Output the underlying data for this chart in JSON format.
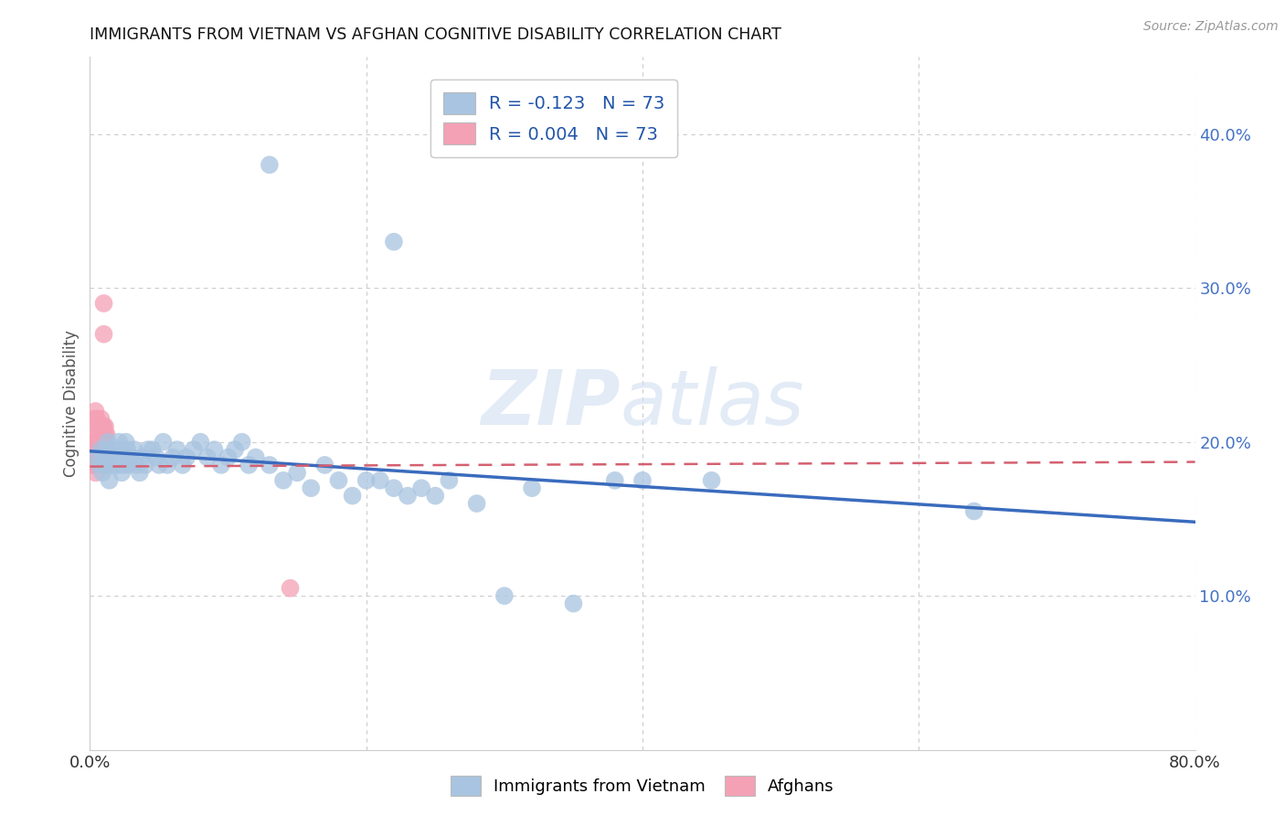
{
  "title": "IMMIGRANTS FROM VIETNAM VS AFGHAN COGNITIVE DISABILITY CORRELATION CHART",
  "source": "Source: ZipAtlas.com",
  "ylabel": "Cognitive Disability",
  "xlim": [
    0,
    0.8
  ],
  "ylim": [
    0,
    0.45
  ],
  "yticks_right": [
    0.1,
    0.2,
    0.3,
    0.4
  ],
  "ytick_labels_right": [
    "10.0%",
    "20.0%",
    "30.0%",
    "40.0%"
  ],
  "watermark_zip": "ZIP",
  "watermark_atlas": "atlas",
  "color_vietnam": "#a8c4e0",
  "color_afghan": "#f4a0b5",
  "color_trend_vietnam": "#3a6bbd",
  "color_trend_afghan": "#d46070",
  "legend_label1": "Immigrants from Vietnam",
  "legend_label2": "Afghans",
  "R_vietnam": -0.123,
  "R_afghan": 0.004,
  "N": 73,
  "trend_viet_x0": 0.0,
  "trend_viet_y0": 0.194,
  "trend_viet_x1": 0.8,
  "trend_viet_y1": 0.148,
  "trend_afghan_x0": 0.0,
  "trend_afghan_y0": 0.184,
  "trend_afghan_x1": 0.8,
  "trend_afghan_y1": 0.187,
  "vietnam_x": [
    0.005,
    0.007,
    0.008,
    0.009,
    0.01,
    0.011,
    0.012,
    0.013,
    0.014,
    0.015,
    0.016,
    0.017,
    0.018,
    0.019,
    0.02,
    0.021,
    0.022,
    0.023,
    0.024,
    0.025,
    0.026,
    0.027,
    0.028,
    0.03,
    0.032,
    0.034,
    0.036,
    0.038,
    0.04,
    0.042,
    0.045,
    0.048,
    0.05,
    0.053,
    0.056,
    0.06,
    0.063,
    0.067,
    0.07,
    0.075,
    0.08,
    0.085,
    0.09,
    0.095,
    0.1,
    0.105,
    0.11,
    0.115,
    0.12,
    0.13,
    0.14,
    0.15,
    0.16,
    0.17,
    0.18,
    0.19,
    0.2,
    0.21,
    0.22,
    0.23,
    0.24,
    0.25,
    0.26,
    0.28,
    0.3,
    0.32,
    0.35,
    0.38,
    0.4,
    0.45,
    0.64,
    0.13,
    0.22
  ],
  "vietnam_y": [
    0.19,
    0.185,
    0.195,
    0.18,
    0.185,
    0.19,
    0.195,
    0.2,
    0.175,
    0.185,
    0.19,
    0.195,
    0.185,
    0.19,
    0.185,
    0.2,
    0.195,
    0.18,
    0.185,
    0.19,
    0.2,
    0.195,
    0.185,
    0.19,
    0.195,
    0.185,
    0.18,
    0.19,
    0.185,
    0.195,
    0.195,
    0.19,
    0.185,
    0.2,
    0.185,
    0.19,
    0.195,
    0.185,
    0.19,
    0.195,
    0.2,
    0.19,
    0.195,
    0.185,
    0.19,
    0.195,
    0.2,
    0.185,
    0.19,
    0.185,
    0.175,
    0.18,
    0.17,
    0.185,
    0.175,
    0.165,
    0.175,
    0.175,
    0.17,
    0.165,
    0.17,
    0.165,
    0.175,
    0.16,
    0.1,
    0.17,
    0.095,
    0.175,
    0.175,
    0.175,
    0.155,
    0.38,
    0.33
  ],
  "afghan_x": [
    0.003,
    0.004,
    0.005,
    0.006,
    0.007,
    0.008,
    0.009,
    0.01,
    0.011,
    0.012,
    0.003,
    0.004,
    0.005,
    0.006,
    0.007,
    0.008,
    0.009,
    0.01,
    0.011,
    0.012,
    0.003,
    0.004,
    0.005,
    0.006,
    0.007,
    0.008,
    0.009,
    0.01,
    0.011,
    0.012,
    0.003,
    0.004,
    0.005,
    0.006,
    0.007,
    0.008,
    0.009,
    0.01,
    0.011,
    0.012,
    0.003,
    0.004,
    0.005,
    0.006,
    0.007,
    0.008,
    0.009,
    0.01,
    0.011,
    0.012,
    0.003,
    0.004,
    0.005,
    0.006,
    0.007,
    0.008,
    0.009,
    0.01,
    0.011,
    0.012,
    0.003,
    0.004,
    0.005,
    0.006,
    0.007,
    0.008,
    0.009,
    0.01,
    0.011,
    0.012,
    0.01,
    0.145,
    0.01
  ],
  "afghan_y": [
    0.19,
    0.185,
    0.195,
    0.185,
    0.19,
    0.185,
    0.195,
    0.19,
    0.185,
    0.19,
    0.195,
    0.185,
    0.19,
    0.195,
    0.185,
    0.19,
    0.195,
    0.185,
    0.19,
    0.195,
    0.185,
    0.18,
    0.19,
    0.185,
    0.195,
    0.185,
    0.19,
    0.185,
    0.19,
    0.185,
    0.2,
    0.195,
    0.185,
    0.19,
    0.185,
    0.195,
    0.19,
    0.185,
    0.19,
    0.195,
    0.185,
    0.195,
    0.19,
    0.185,
    0.19,
    0.185,
    0.2,
    0.195,
    0.185,
    0.19,
    0.195,
    0.22,
    0.215,
    0.21,
    0.205,
    0.215,
    0.21,
    0.205,
    0.21,
    0.205,
    0.215,
    0.2,
    0.205,
    0.195,
    0.21,
    0.205,
    0.195,
    0.21,
    0.205,
    0.2,
    0.29,
    0.105,
    0.27
  ]
}
